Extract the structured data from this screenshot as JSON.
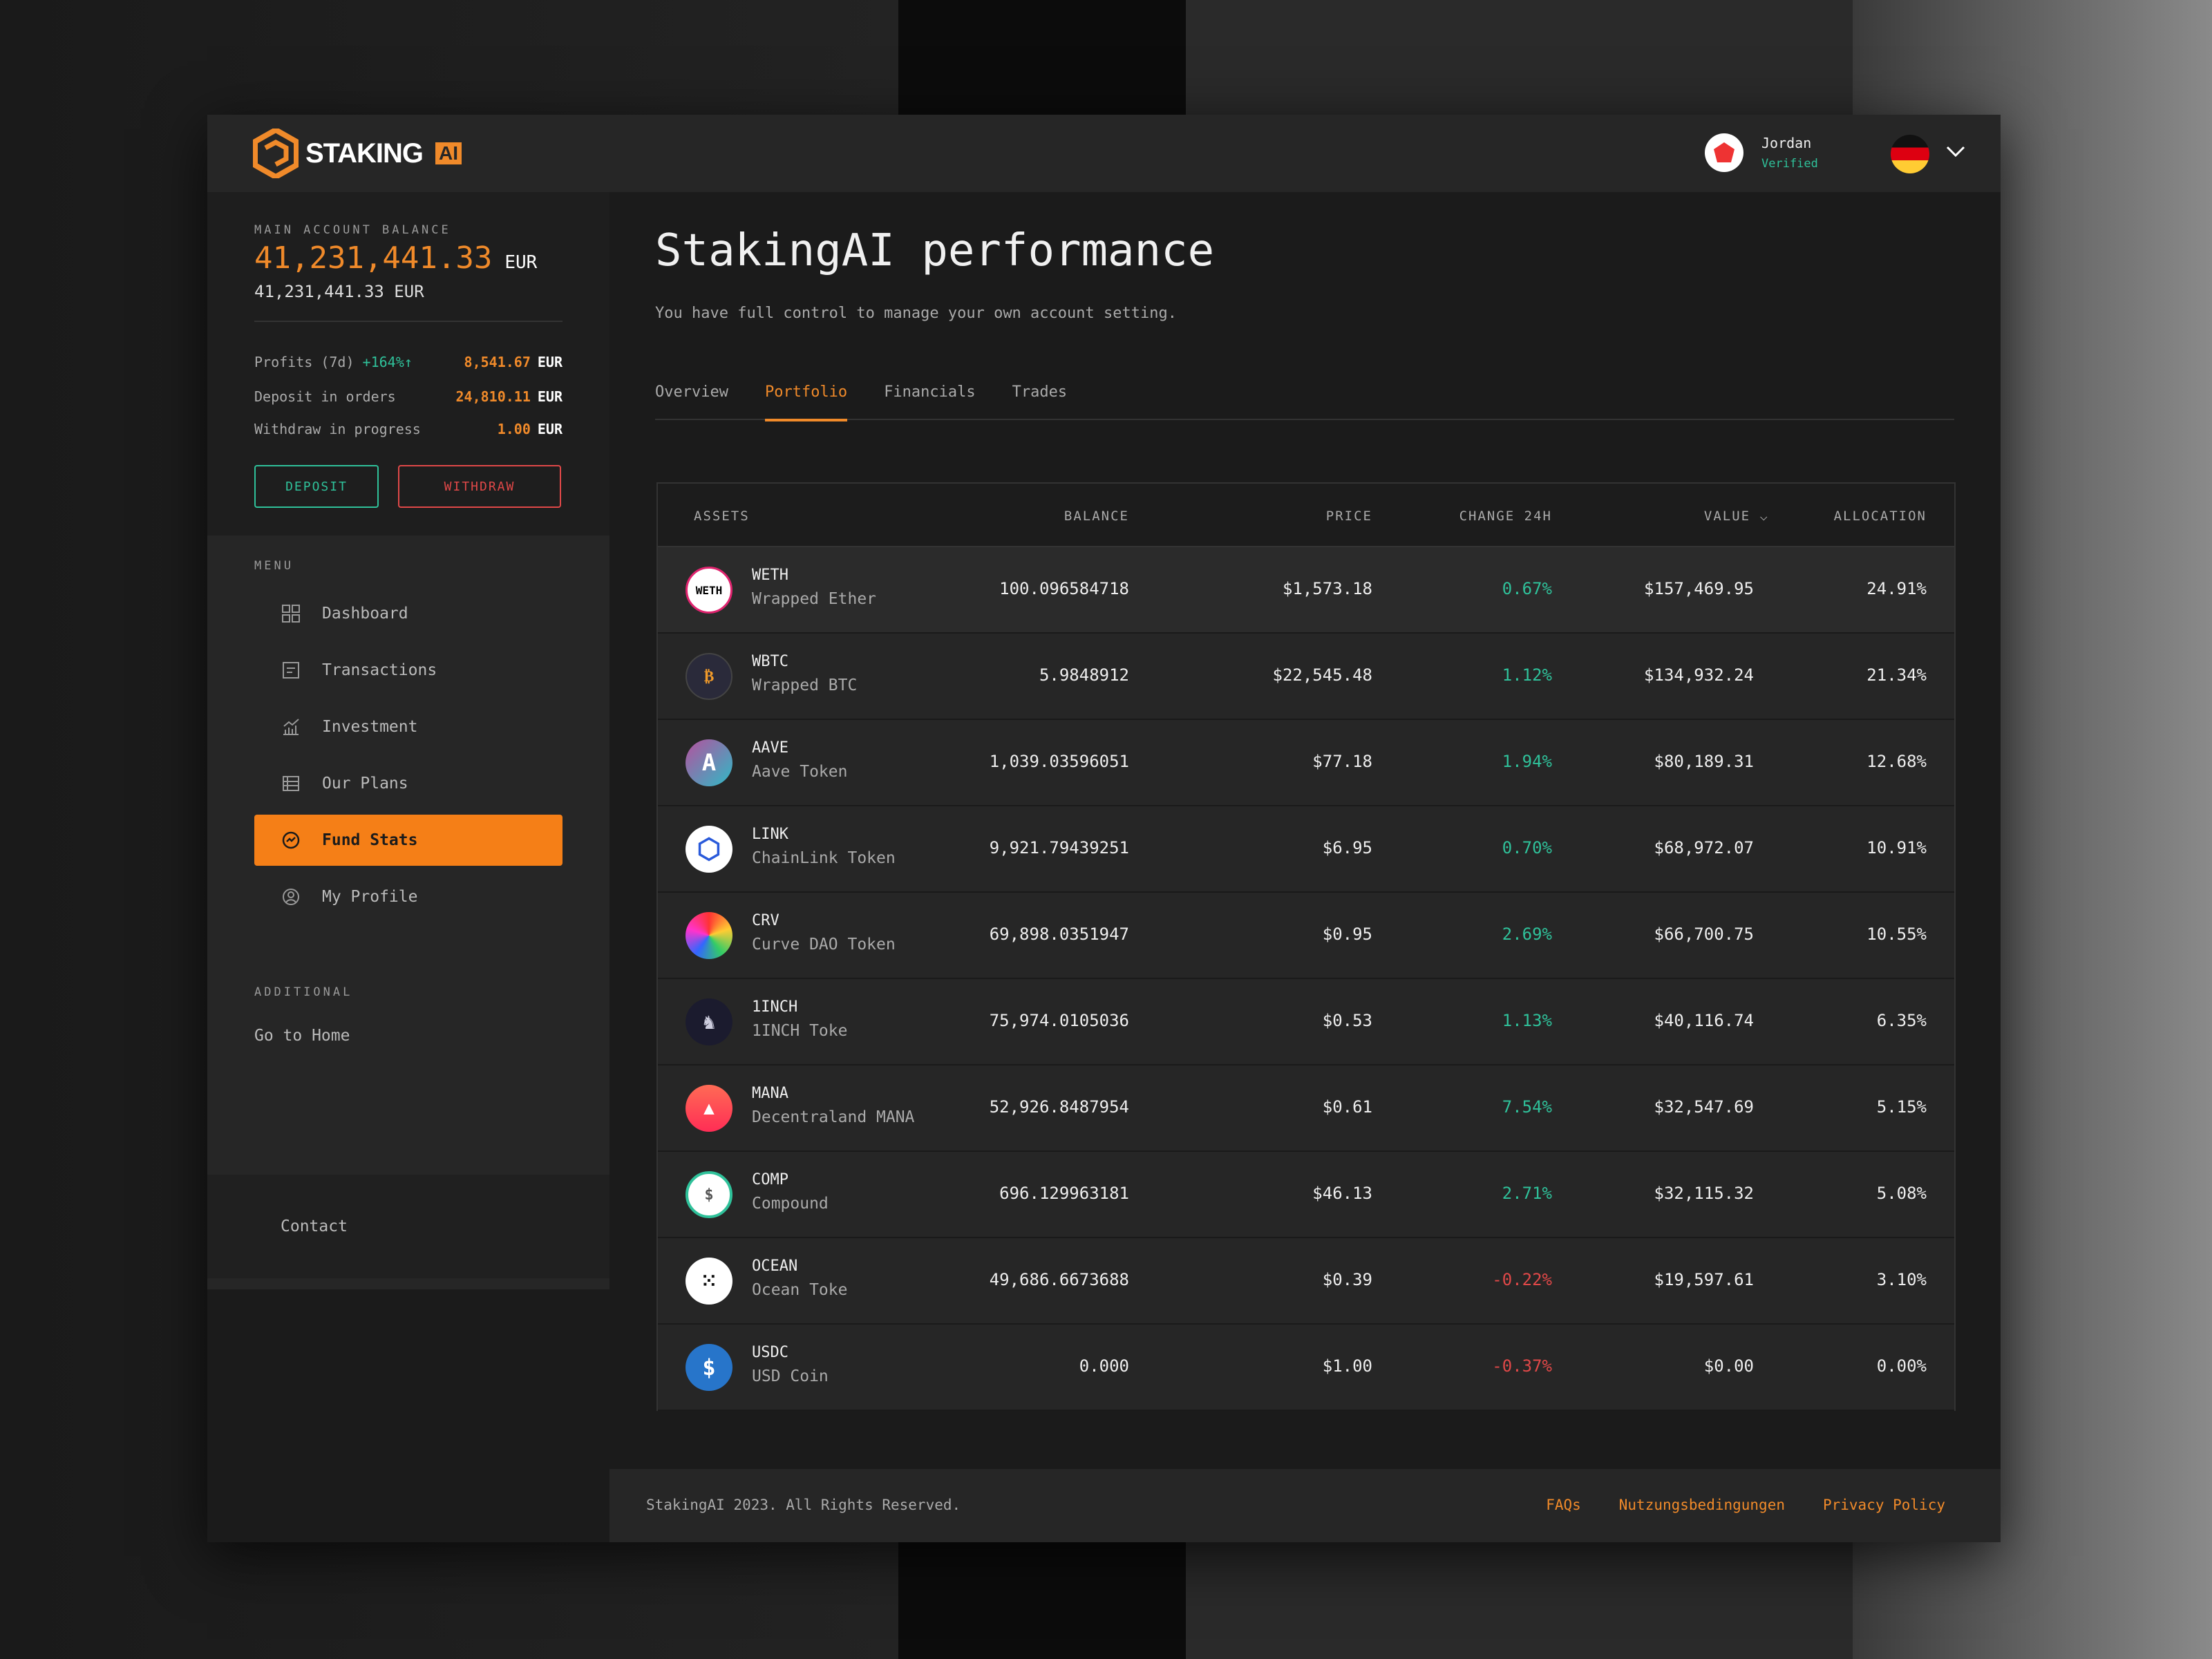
{
  "brand": {
    "name": "STAKING",
    "badge": "AI"
  },
  "user": {
    "name": "Jordan",
    "status": "Verified",
    "language_flag": "germany-flag"
  },
  "colors": {
    "accent": "#f08a2a",
    "positive": "#2fc19a",
    "negative": "#e04848"
  },
  "account": {
    "label": "MAIN ACCOUNT BALANCE",
    "balance": "41,231,441.33",
    "currency": "EUR",
    "balance_secondary": "41,231,441.33 EUR",
    "stats": [
      {
        "label": "Profits (7d)",
        "change": "+164%↑",
        "value": "8,541.67",
        "currency": "EUR"
      },
      {
        "label": "Deposit in orders",
        "value": "24,810.11",
        "currency": "EUR"
      },
      {
        "label": "Withdraw in progress",
        "value": "1.00",
        "currency": "EUR"
      }
    ],
    "deposit_label": "DEPOSIT",
    "withdraw_label": "WITHDRAW"
  },
  "menu": {
    "label": "MENU",
    "items": [
      {
        "label": "Dashboard",
        "icon": "grid-icon"
      },
      {
        "label": "Transactions",
        "icon": "receipt-icon"
      },
      {
        "label": "Investment",
        "icon": "chart-icon"
      },
      {
        "label": "Our Plans",
        "icon": "plans-icon"
      },
      {
        "label": "Fund Stats",
        "icon": "stats-icon",
        "active": true
      },
      {
        "label": "My Profile",
        "icon": "profile-icon"
      }
    ]
  },
  "additional": {
    "label": "ADDITIONAL",
    "home": "Go to Home"
  },
  "contact": "Contact",
  "main": {
    "title": "StakingAI performance",
    "subtitle": "You have full control to manage your own account setting.",
    "tabs": [
      "Overview",
      "Portfolio",
      "Financials",
      "Trades"
    ],
    "active_tab": "Portfolio"
  },
  "table": {
    "headers": {
      "assets": "ASSETS",
      "balance": "BALANCE",
      "price": "PRICE",
      "change": "CHANGE 24H",
      "value": "VALUE",
      "allocation": "ALLOCATION"
    },
    "rows": [
      {
        "symbol": "WETH",
        "name": "Wrapped Ether",
        "balance": "100.096584718",
        "price": "$1,573.18",
        "change": "0.67%",
        "value": "$157,469.95",
        "allocation": "24.91%"
      },
      {
        "symbol": "WBTC",
        "name": "Wrapped BTC",
        "balance": "5.9848912",
        "price": "$22,545.48",
        "change": "1.12%",
        "value": "$134,932.24",
        "allocation": "21.34%"
      },
      {
        "symbol": "AAVE",
        "name": "Aave Token",
        "balance": "1,039.03596051",
        "price": "$77.18",
        "change": "1.94%",
        "value": "$80,189.31",
        "allocation": "12.68%"
      },
      {
        "symbol": "LINK",
        "name": "ChainLink Token",
        "balance": "9,921.79439251",
        "price": "$6.95",
        "change": "0.70%",
        "value": "$68,972.07",
        "allocation": "10.91%"
      },
      {
        "symbol": "CRV",
        "name": "Curve DAO Token",
        "balance": "69,898.0351947",
        "price": "$0.95",
        "change": "2.69%",
        "value": "$66,700.75",
        "allocation": "10.55%"
      },
      {
        "symbol": "1INCH",
        "name": "1INCH Toke",
        "balance": "75,974.0105036",
        "price": "$0.53",
        "change": "1.13%",
        "value": "$40,116.74",
        "allocation": "6.35%"
      },
      {
        "symbol": "MANA",
        "name": "Decentraland MANA",
        "balance": "52,926.8487954",
        "price": "$0.61",
        "change": "7.54%",
        "value": "$32,547.69",
        "allocation": "5.15%"
      },
      {
        "symbol": "COMP",
        "name": "Compound",
        "balance": "696.129963181",
        "price": "$46.13",
        "change": "2.71%",
        "value": "$32,115.32",
        "allocation": "5.08%"
      },
      {
        "symbol": "OCEAN",
        "name": "Ocean Toke",
        "balance": "49,686.6673688",
        "price": "$0.39",
        "change": "-0.22%",
        "value": "$19,597.61",
        "allocation": "3.10%"
      },
      {
        "symbol": "USDC",
        "name": "USD Coin",
        "balance": "0.000",
        "price": "$1.00",
        "change": "-0.37%",
        "value": "$0.00",
        "allocation": "0.00%"
      }
    ]
  },
  "footer": {
    "copyright": "StakingAI 2023. All Rights Reserved.",
    "links": [
      "FAQs",
      "Nutzungsbedingungen",
      "Privacy Policy"
    ]
  }
}
